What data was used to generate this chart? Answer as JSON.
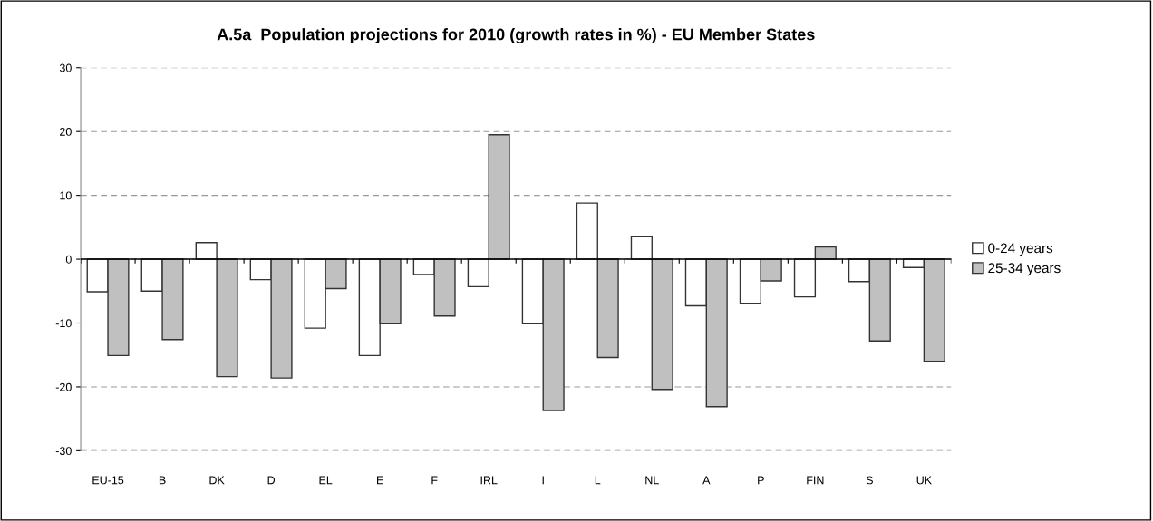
{
  "chart_data": {
    "type": "bar",
    "title": "A.5a  Population projections for 2010 (growth rates in %) - EU Member States",
    "categories": [
      "EU-15",
      "B",
      "DK",
      "D",
      "EL",
      "E",
      "F",
      "IRL",
      "I",
      "L",
      "NL",
      "A",
      "P",
      "FIN",
      "S",
      "UK"
    ],
    "series": [
      {
        "name": "0-24 years",
        "color": "#ffffff",
        "values": [
          -5.1,
          -5.0,
          2.6,
          -3.2,
          -10.8,
          -15.1,
          -2.4,
          -4.3,
          -10.1,
          8.8,
          3.5,
          -7.3,
          -6.9,
          -5.9,
          -3.5,
          -1.3
        ]
      },
      {
        "name": "25-34 years",
        "color": "#c0c0c0",
        "values": [
          -15.1,
          -12.6,
          -18.4,
          -18.6,
          -4.6,
          -10.1,
          -8.9,
          19.5,
          -23.7,
          -15.4,
          -20.4,
          -23.1,
          -3.4,
          1.9,
          -12.8,
          -16.0
        ]
      }
    ],
    "ylim": [
      -30,
      30
    ],
    "yticks": [
      -30,
      -20,
      -10,
      0,
      10,
      20,
      30
    ],
    "grid": "y",
    "legend": "right"
  }
}
